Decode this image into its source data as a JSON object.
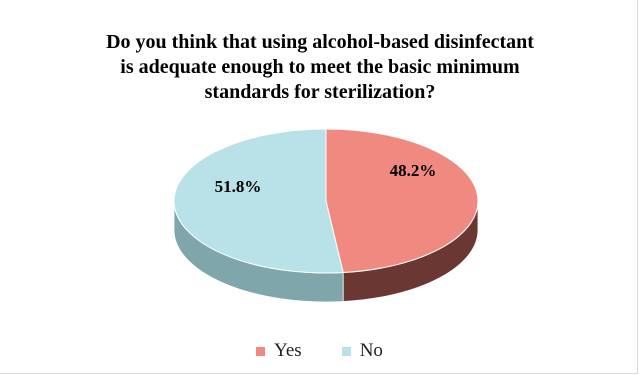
{
  "chart_data": {
    "type": "pie",
    "title": "Do you think that using alcohol-based disinfectant is adequate enough to meet the basic minimum standards for sterilization?",
    "title_lines": [
      "Do you think that using alcohol-based disinfectant",
      "is adequate enough to meet the basic minimum",
      "standards for sterilization?"
    ],
    "categories": [
      "Yes",
      "No"
    ],
    "values": [
      48.2,
      51.8
    ],
    "data_labels": [
      "48.2%",
      "51.8%"
    ],
    "colors": [
      "#f08a81",
      "#b8e2e8"
    ],
    "side_colors": [
      "#6b3733",
      "#7fa6ab"
    ],
    "legend_position": "bottom",
    "style": "3d"
  }
}
